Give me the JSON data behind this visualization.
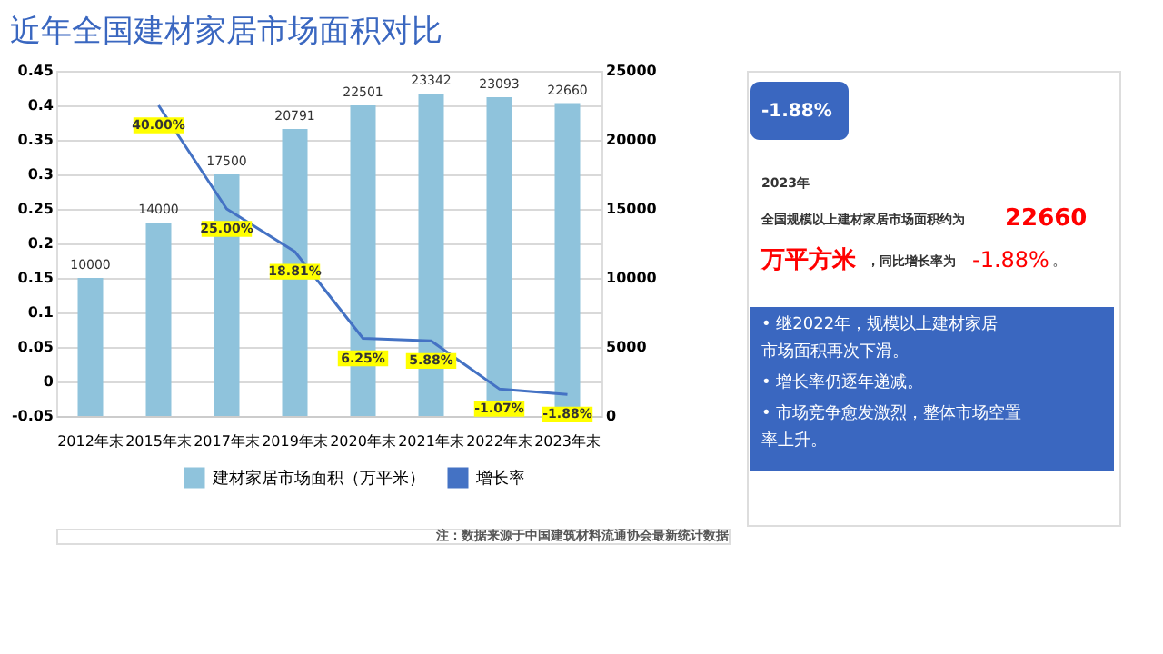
{
  "chart_data": {
    "type": "bar",
    "title": "近年全国建材家居市场面积对比",
    "categories": [
      "2012年末",
      "2015年末",
      "2017年末",
      "2019年末",
      "2020年末",
      "2021年末",
      "2022年末",
      "2023年末"
    ],
    "series": [
      {
        "name": "建材家居市场面积（万平米）",
        "axis": "y2",
        "color": "#8fc3dc",
        "values": [
          10000,
          14000,
          17500,
          20791,
          22501,
          23342,
          23093,
          22660
        ],
        "value_labels": [
          "10000",
          "14000",
          "17500",
          "20791",
          "22501",
          "23342",
          "23093",
          "22660"
        ]
      },
      {
        "name": "增长率",
        "type": "line",
        "color": "#4472c4",
        "values": [
          null,
          0.4,
          0.25,
          0.1881,
          0.0625,
          0.0588,
          -0.0107,
          -0.0188
        ],
        "value_labels": [
          null,
          "40.00%",
          "25.00%",
          "18.81%",
          "6.25%",
          "5.88%",
          "-1.07%",
          "-1.88%"
        ]
      }
    ],
    "ylim": [
      -0.05,
      0.45
    ],
    "yticks": [
      -0.05,
      0,
      0.05,
      0.1,
      0.15,
      0.2,
      0.25,
      0.3,
      0.35,
      0.4,
      0.45
    ],
    "y2lim": [
      0,
      25000
    ],
    "y2ticks": [
      0,
      5000,
      10000,
      15000,
      20000,
      25000
    ],
    "grid": "y",
    "legend": "bottom",
    "marker": "none",
    "line_style": "solid",
    "annotations": [
      "注：数据来源于中国建筑材料流通协会最新统计数据",
      "-1.88%",
      "2023年",
      "全国规模以上建材家居市场面积约为",
      "22660",
      "万平方米",
      "，同比增长率为",
      "-1.88%",
      "。",
      "• 继2022年，规模以上建材家居市场面积再次下滑。",
      "• 增长率仍逐年递减。",
      "• 市场竞争愈发激烈，整体市场空置率上升。"
    ]
  }
}
